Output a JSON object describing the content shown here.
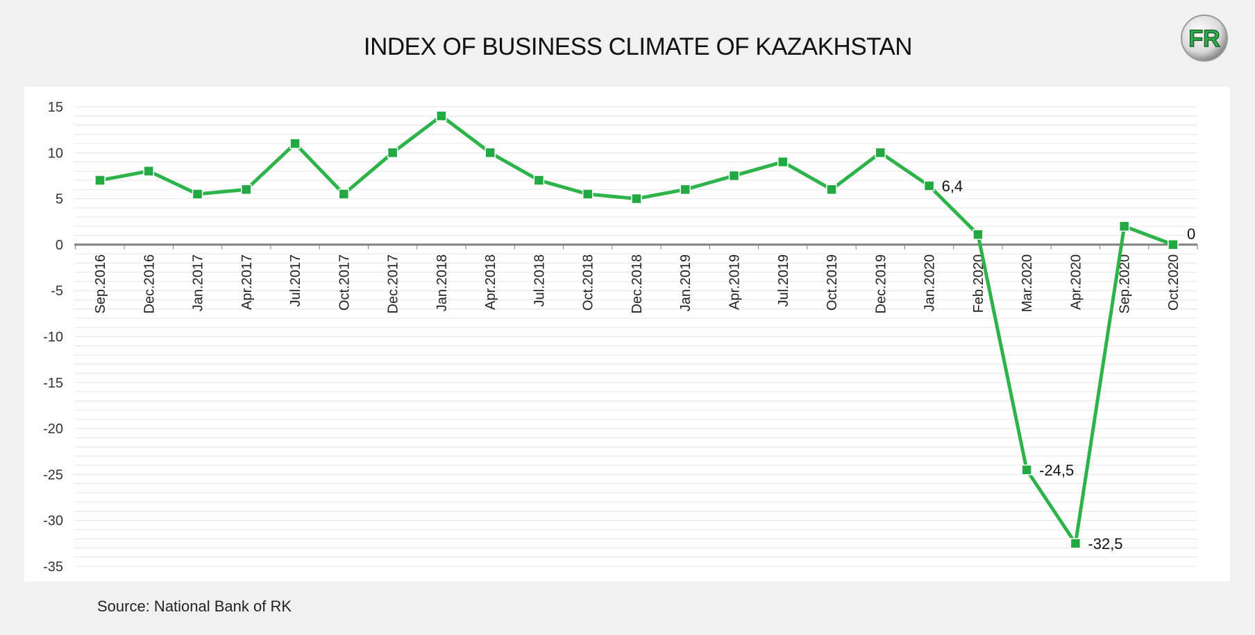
{
  "title": "INDEX OF BUSINESS CLIMATE OF KAZAKHSTAN",
  "source": "Source: National Bank of RK",
  "logo": {
    "text": "FR",
    "icon": "fr-logo"
  },
  "colors": {
    "line": "#2db34a",
    "marker": "#22a944",
    "axis": "#7f7f7f",
    "grid": "#e4e4e4"
  },
  "chart_data": {
    "type": "line",
    "categories": [
      "Sep.2016",
      "Dec.2016",
      "Jan.2017",
      "Apr.2017",
      "Jul.2017",
      "Oct.2017",
      "Dec.2017",
      "Jan.2018",
      "Apr.2018",
      "Jul.2018",
      "Oct.2018",
      "Dec.2018",
      "Jan.2019",
      "Apr.2019",
      "Jul.2019",
      "Oct.2019",
      "Dec.2019",
      "Jan.2020",
      "Feb.2020",
      "Mar.2020",
      "Apr.2020",
      "Sep.2020",
      "Oct.2020"
    ],
    "series": [
      {
        "values": [
          7,
          8,
          5.5,
          6,
          11,
          5.5,
          10,
          14,
          10,
          7,
          5.5,
          5,
          6,
          7.5,
          9,
          6,
          10,
          6.4,
          1.1,
          -24.5,
          -32.5,
          2,
          0
        ]
      }
    ],
    "data_labels": [
      {
        "index": 17,
        "text": "6,4"
      },
      {
        "index": 19,
        "text": "-24,5"
      },
      {
        "index": 20,
        "text": "-32,5"
      },
      {
        "index": 22,
        "text": "0"
      }
    ],
    "ylim": [
      -35,
      15
    ],
    "yticks": [
      15,
      10,
      5,
      0,
      -5,
      -10,
      -15,
      -20,
      -25,
      -30,
      -35
    ],
    "minor_grid_step": 1,
    "grid": true,
    "legend": "none"
  }
}
